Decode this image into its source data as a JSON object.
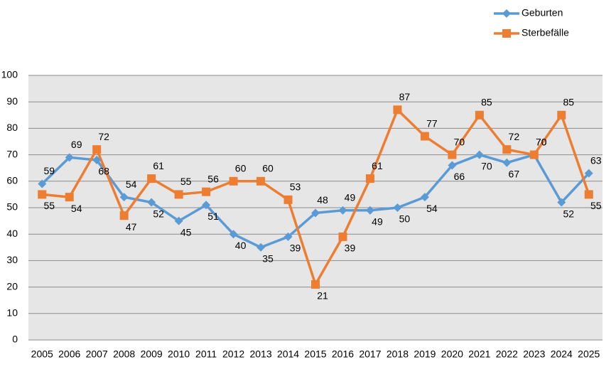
{
  "chart_data": {
    "type": "line",
    "categories": [
      "2005",
      "2006",
      "2007",
      "2008",
      "2009",
      "2010",
      "2011",
      "2012",
      "2013",
      "2014",
      "2015",
      "2016",
      "2017",
      "2018",
      "2019",
      "2020",
      "2021",
      "2022",
      "2023",
      "2024",
      "2025"
    ],
    "series": [
      {
        "name": "Geburten",
        "color": "#5b9bd5",
        "marker": "diamond",
        "values": [
          59,
          69,
          68,
          54,
          52,
          45,
          51,
          40,
          35,
          39,
          48,
          49,
          49,
          50,
          54,
          66,
          70,
          67,
          70,
          52,
          63
        ]
      },
      {
        "name": "Sterbefälle",
        "color": "#ed7d31",
        "marker": "square",
        "values": [
          55,
          54,
          72,
          47,
          61,
          55,
          56,
          60,
          60,
          53,
          21,
          39,
          61,
          87,
          77,
          70,
          85,
          72,
          70,
          85,
          55
        ]
      }
    ],
    "ylim": [
      0,
      100
    ],
    "yticks": [
      0,
      10,
      20,
      30,
      40,
      50,
      60,
      70,
      80,
      90,
      100
    ],
    "grid": true,
    "legend": "top-right"
  }
}
